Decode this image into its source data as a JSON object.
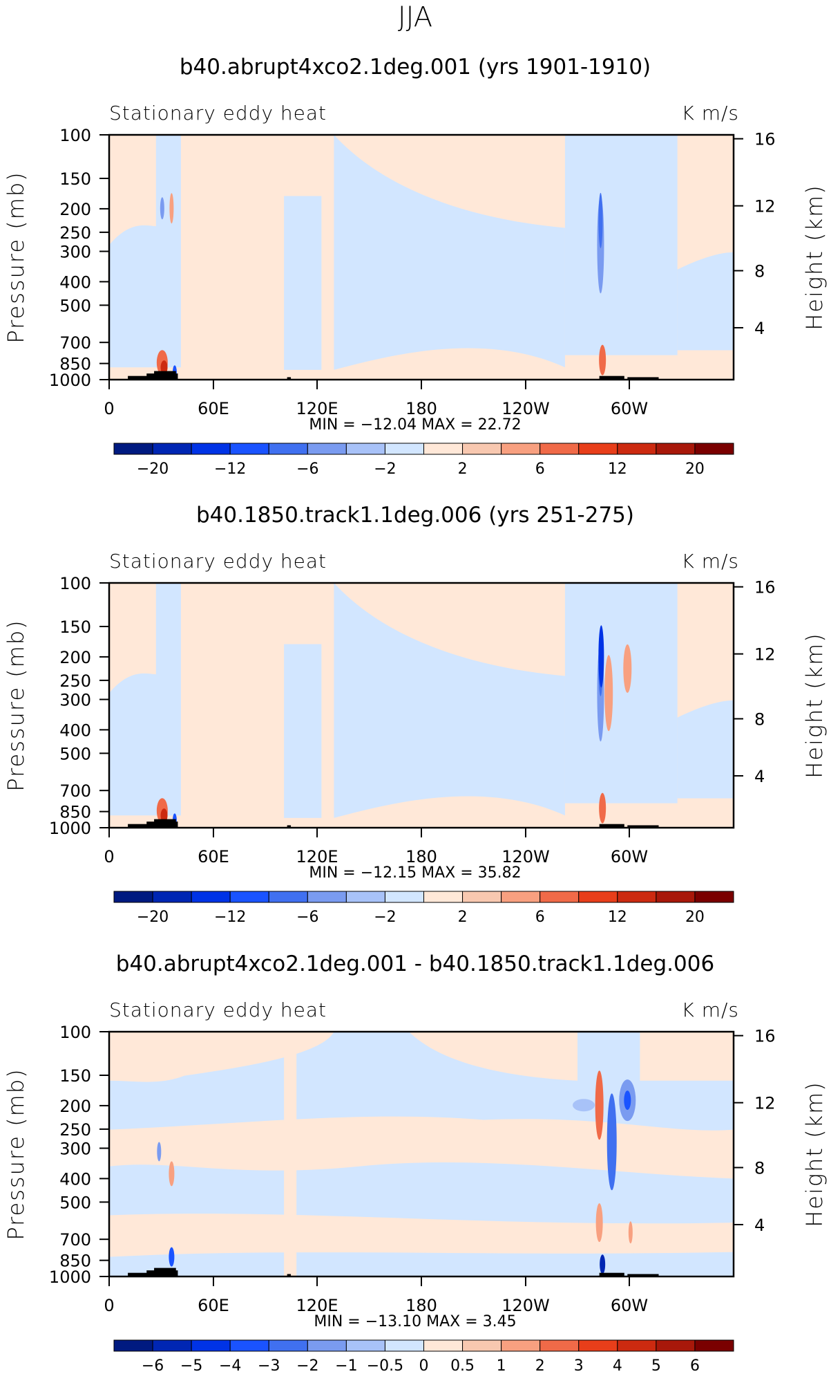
{
  "season": "JJA",
  "colors": {
    "palette_main": [
      "#001a80",
      "#0026b3",
      "#0033e6",
      "#1a53ff",
      "#4070f0",
      "#7a9bf0",
      "#a8c2f8",
      "#d2e6ff",
      "#ffe8d8",
      "#f8c8b0",
      "#f8a080",
      "#f06a48",
      "#e83e1a",
      "#cc2a10",
      "#a8180a",
      "#7a0000"
    ],
    "palette_diff": [
      "#001a80",
      "#0026b3",
      "#0033e6",
      "#1a53ff",
      "#4070f0",
      "#7a9bf0",
      "#a8c2f8",
      "#d2e6ff",
      "#ffe8d8",
      "#f8c8b0",
      "#f8a080",
      "#f06a48",
      "#e83e1a",
      "#cc2a10",
      "#a8180a",
      "#7a0000"
    ],
    "light_blue": "#d2e6ff",
    "light_peach": "#ffe8d8",
    "topography": "#000000"
  },
  "chart_data": [
    {
      "type": "heatmap",
      "title": "b40.abrupt4xco2.1deg.001 (yrs 1901-1910)",
      "left_label": "Stationary eddy heat",
      "right_label": "K m/s",
      "ylabel": "Pressure (mb)",
      "ylabel_right": "Height (km)",
      "y_ticks": [
        "100",
        "150",
        "200",
        "250",
        "300",
        "400",
        "500",
        "700",
        "850",
        "1000"
      ],
      "y_ticks_right": [
        "16",
        "12",
        "8",
        "4"
      ],
      "x_ticks": [
        "0",
        "60E",
        "120E",
        "180",
        "120W",
        "60W"
      ],
      "stats": "MIN = −12.04   MAX =   22.72",
      "colorbar_labels": [
        "−20",
        "−12",
        "−6",
        "−2",
        "2",
        "6",
        "12",
        "20"
      ]
    },
    {
      "type": "heatmap",
      "title": "b40.1850.track1.1deg.006 (yrs 251-275)",
      "left_label": "Stationary eddy heat",
      "right_label": "K m/s",
      "ylabel": "Pressure (mb)",
      "ylabel_right": "Height (km)",
      "y_ticks": [
        "100",
        "150",
        "200",
        "250",
        "300",
        "400",
        "500",
        "700",
        "850",
        "1000"
      ],
      "y_ticks_right": [
        "16",
        "12",
        "8",
        "4"
      ],
      "x_ticks": [
        "0",
        "60E",
        "120E",
        "180",
        "120W",
        "60W"
      ],
      "stats": "MIN = −12.15   MAX =   35.82",
      "colorbar_labels": [
        "−20",
        "−12",
        "−6",
        "−2",
        "2",
        "6",
        "12",
        "20"
      ]
    },
    {
      "type": "heatmap",
      "title": "b40.abrupt4xco2.1deg.001 - b40.1850.track1.1deg.006",
      "left_label": "Stationary eddy heat",
      "right_label": "K m/s",
      "ylabel": "Pressure (mb)",
      "ylabel_right": "Height (km)",
      "y_ticks": [
        "100",
        "150",
        "200",
        "250",
        "300",
        "400",
        "500",
        "700",
        "850",
        "1000"
      ],
      "y_ticks_right": [
        "16",
        "12",
        "8",
        "4"
      ],
      "x_ticks": [
        "0",
        "60E",
        "120E",
        "180",
        "120W",
        "60W"
      ],
      "stats": "MIN = −13.10   MAX =     3.45",
      "colorbar_labels": [
        "−6",
        "−5",
        "−4",
        "−3",
        "−2",
        "−1",
        "−0.5",
        "0",
        "0.5",
        "1",
        "2",
        "3",
        "4",
        "5",
        "6"
      ]
    }
  ]
}
